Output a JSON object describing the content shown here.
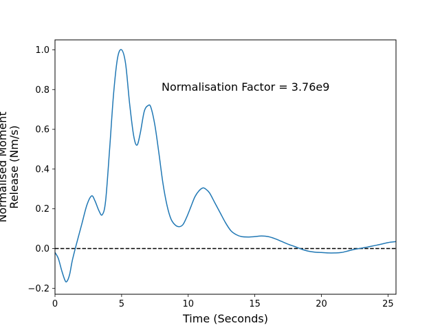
{
  "chart_data": {
    "type": "line",
    "xlabel": "Time (Seconds)",
    "ylabel_lines": [
      "Normalised Moment",
      "Release (Nm/s)"
    ],
    "annotation": "Normalisation Factor = 3.76e9",
    "xlim": [
      0,
      25.6
    ],
    "ylim": [
      -0.23,
      1.05
    ],
    "x_ticks": [
      0,
      5,
      10,
      15,
      20,
      25
    ],
    "x_tick_labels": [
      "0",
      "5",
      "10",
      "15",
      "20",
      "25"
    ],
    "y_ticks": [
      -0.2,
      0.0,
      0.2,
      0.4,
      0.6,
      0.8,
      1.0
    ],
    "y_tick_labels": [
      "−0.2",
      "0.0",
      "0.2",
      "0.4",
      "0.6",
      "0.8",
      "1.0"
    ],
    "grid": false,
    "zero_line": {
      "y": 0,
      "style": "dashed",
      "color": "#000000"
    },
    "series": [
      {
        "color": "#1f77b4",
        "x": [
          0,
          0.25,
          0.5,
          0.75,
          0.9,
          1.1,
          1.3,
          1.6,
          2.0,
          2.4,
          2.75,
          3.0,
          3.3,
          3.55,
          3.8,
          4.1,
          4.4,
          4.7,
          5.0,
          5.3,
          5.6,
          5.9,
          6.15,
          6.4,
          6.7,
          7.0,
          7.2,
          7.5,
          7.8,
          8.1,
          8.4,
          8.7,
          9.0,
          9.3,
          9.6,
          9.9,
          10.2,
          10.5,
          10.8,
          11.1,
          11.3,
          11.6,
          12.0,
          12.4,
          12.8,
          13.2,
          13.6,
          14.0,
          14.5,
          15.0,
          15.5,
          16.0,
          16.5,
          17.0,
          17.5,
          18.0,
          18.5,
          19.0,
          19.5,
          20.0,
          20.5,
          21.0,
          21.5,
          22.0,
          22.5,
          23.0,
          23.5,
          24.0,
          24.5,
          25.0,
          25.6
        ],
        "y": [
          -0.02,
          -0.05,
          -0.11,
          -0.16,
          -0.165,
          -0.13,
          -0.06,
          0.02,
          0.12,
          0.22,
          0.265,
          0.24,
          0.19,
          0.17,
          0.24,
          0.5,
          0.78,
          0.96,
          1.0,
          0.93,
          0.73,
          0.57,
          0.52,
          0.58,
          0.69,
          0.72,
          0.71,
          0.62,
          0.48,
          0.33,
          0.22,
          0.15,
          0.12,
          0.11,
          0.12,
          0.16,
          0.21,
          0.26,
          0.29,
          0.305,
          0.3,
          0.28,
          0.23,
          0.18,
          0.13,
          0.09,
          0.07,
          0.06,
          0.058,
          0.06,
          0.063,
          0.06,
          0.05,
          0.036,
          0.022,
          0.01,
          -0.003,
          -0.013,
          -0.018,
          -0.02,
          -0.022,
          -0.022,
          -0.02,
          -0.012,
          -0.004,
          0.002,
          0.008,
          0.015,
          0.022,
          0.03,
          0.035
        ]
      }
    ]
  }
}
